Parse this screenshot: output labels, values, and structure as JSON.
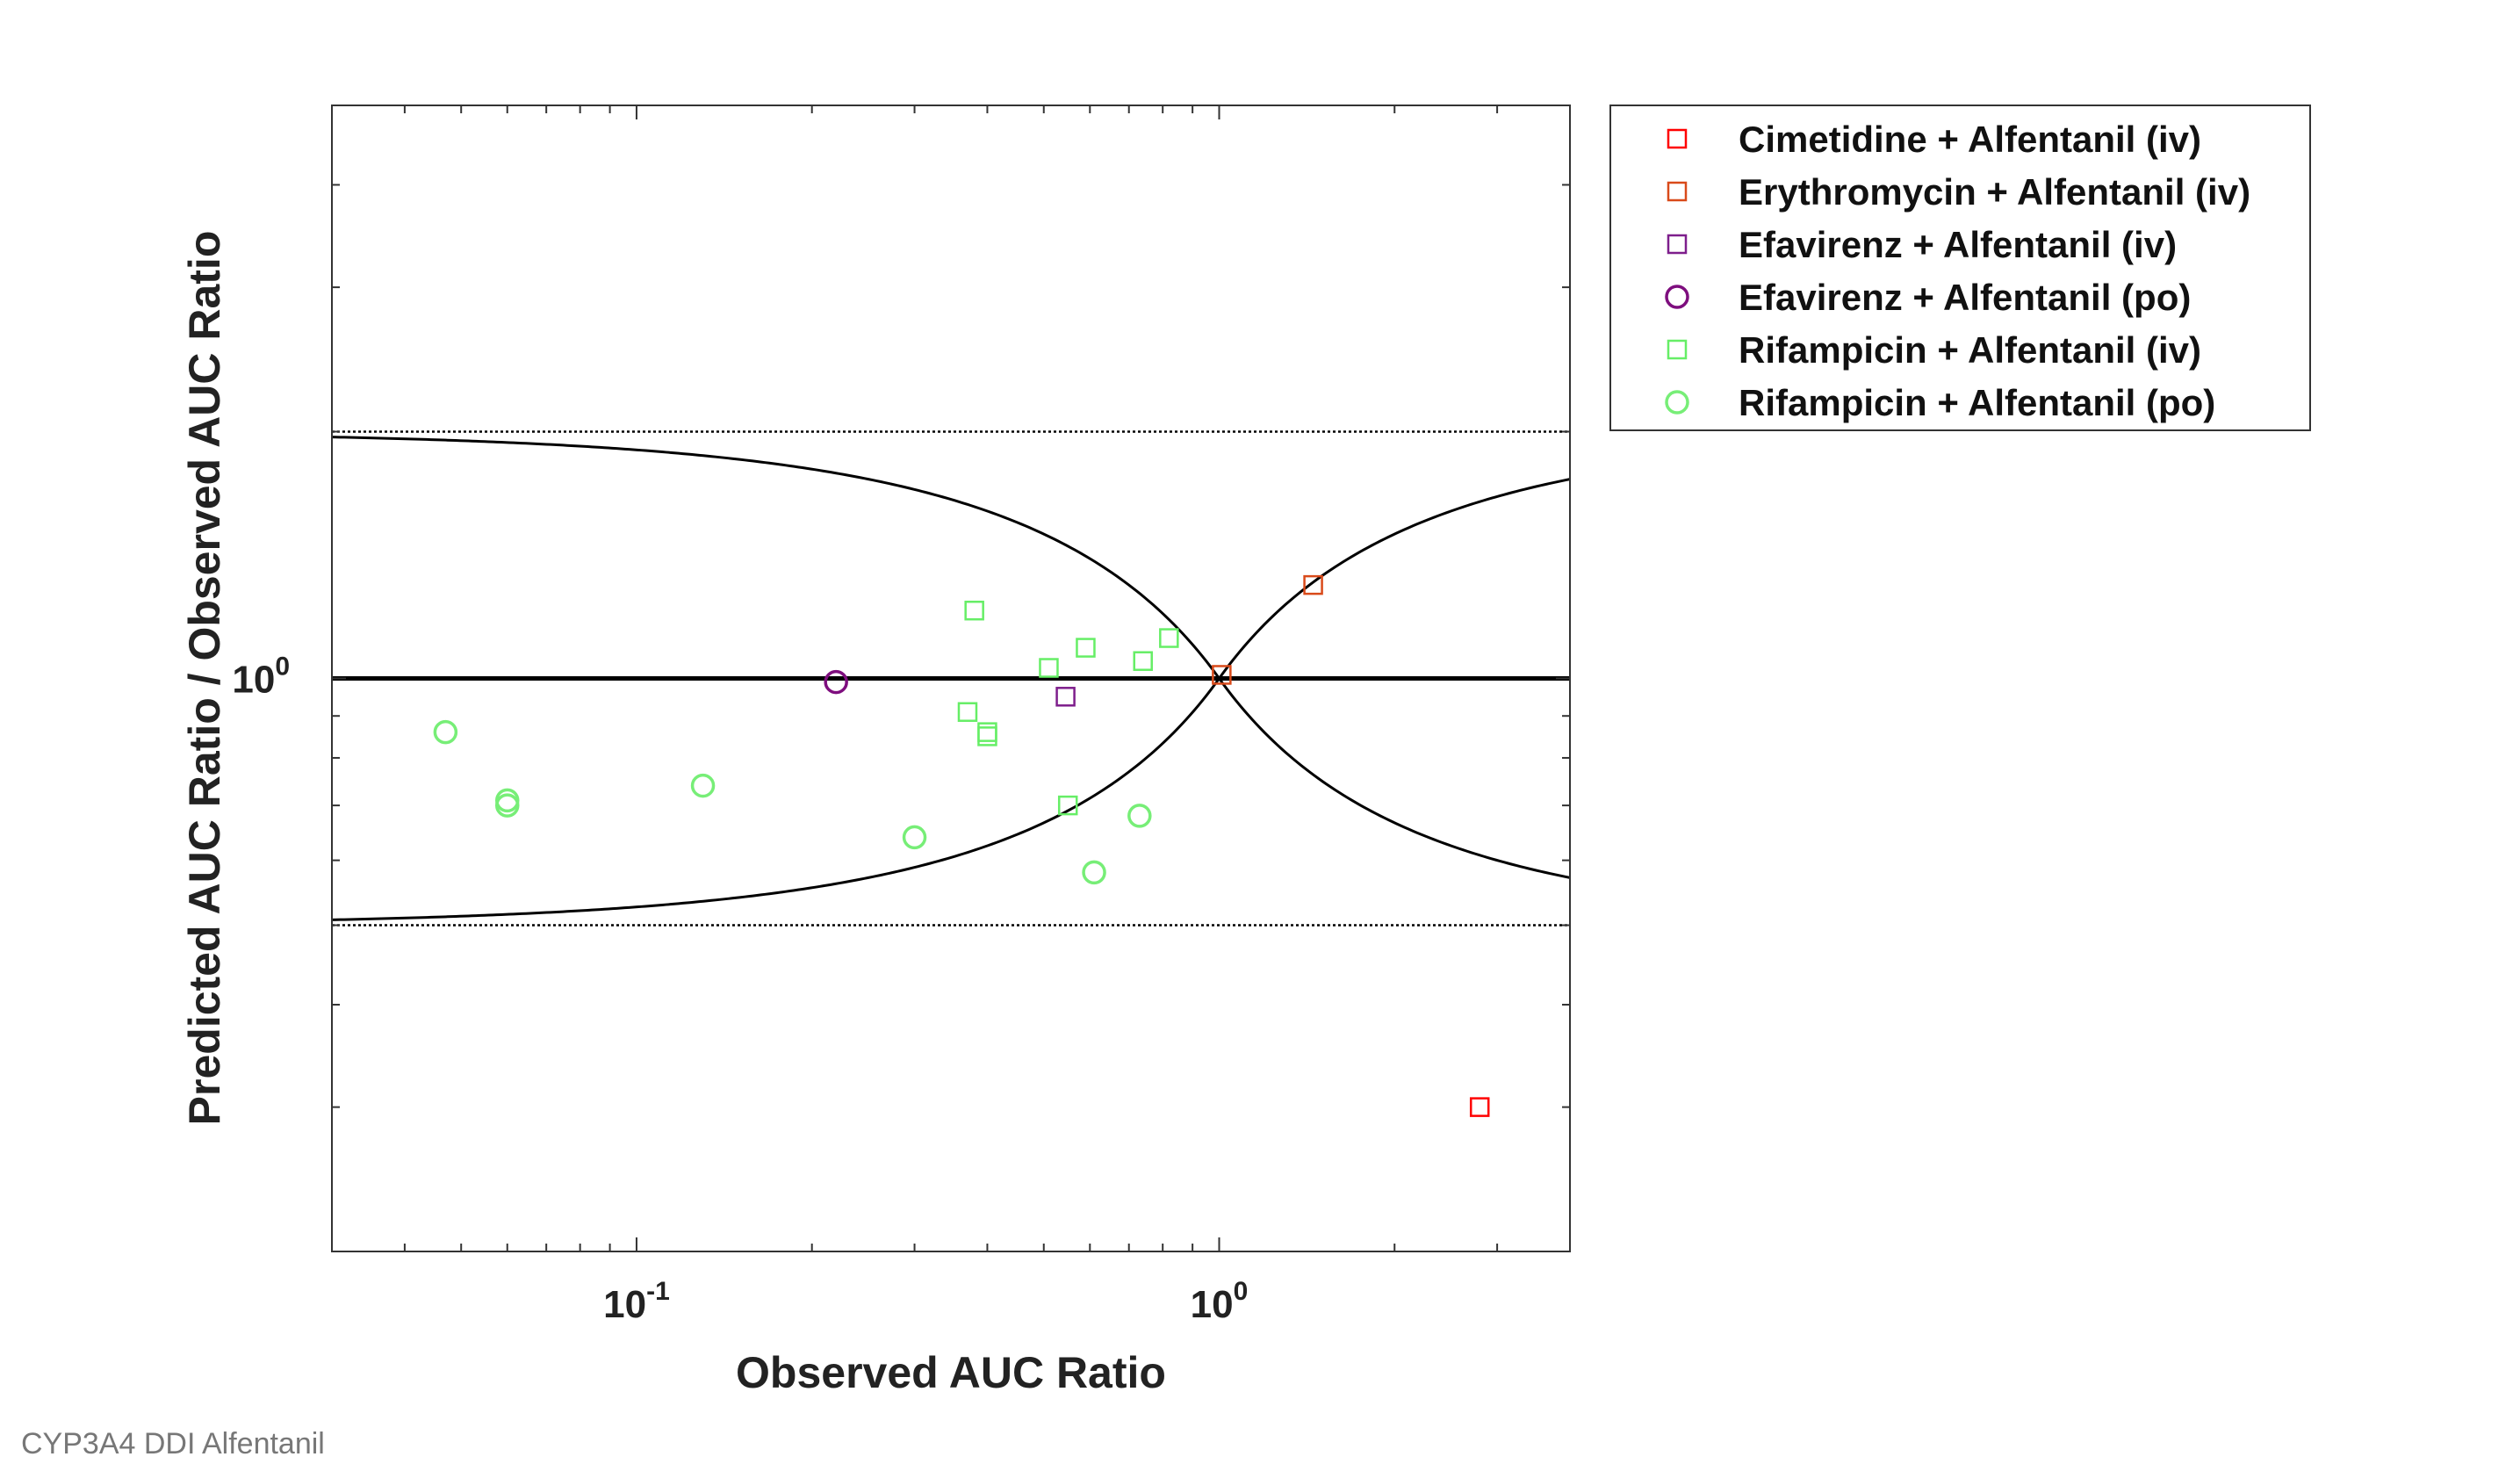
{
  "footer_caption": "CYP3A4 DDI Alfentanil",
  "chart_data": {
    "type": "scatter",
    "title": "",
    "xlabel": "Observed AUC Ratio",
    "ylabel": "Predicted AUC Ratio / Observed AUC Ratio",
    "x_scale": "log",
    "y_scale": "log",
    "xlim": [
      0.03,
      4.0
    ],
    "ylim": [
      0.2,
      5.0
    ],
    "grid": false,
    "legend_position": "outside-top-right",
    "x_ticks": [
      {
        "value": 0.1,
        "base": "10",
        "exp": "-1"
      },
      {
        "value": 1.0,
        "base": "10",
        "exp": "0"
      }
    ],
    "y_ticks": [
      {
        "value": 1.0,
        "base": "10",
        "exp": "0"
      }
    ],
    "reference_lines": {
      "unity": 1.0,
      "dotted_bounds": [
        0.5,
        2.0
      ],
      "guest_limit_delta": 1.0
    },
    "series": [
      {
        "name": "Cimetidine + Alfentanil (iv)",
        "marker": "square",
        "color": "#ff0000",
        "x": [
          2.8
        ],
        "y": [
          0.3
        ]
      },
      {
        "name": "Erythromycin + Alfentanil (iv)",
        "marker": "square",
        "color": "#d94a1a",
        "x": [
          1.45,
          1.01
        ],
        "y": [
          1.3,
          1.01
        ]
      },
      {
        "name": "Efavirenz + Alfentanil (iv)",
        "marker": "square",
        "color": "#7e1e8c",
        "x": [
          0.545
        ],
        "y": [
          0.95
        ]
      },
      {
        "name": "Efavirenz + Alfentanil (po)",
        "marker": "circle",
        "color": "#7e0e7e",
        "x": [
          0.22
        ],
        "y": [
          0.99
        ]
      },
      {
        "name": "Rifampicin + Alfentanil (iv)",
        "marker": "square",
        "color": "#66ee66",
        "x": [
          0.38,
          0.37,
          0.4,
          0.4,
          0.51,
          0.59,
          0.74,
          0.82,
          0.55
        ],
        "y": [
          1.21,
          0.91,
          0.86,
          0.85,
          1.03,
          1.09,
          1.05,
          1.12,
          0.7
        ]
      },
      {
        "name": "Rifampicin + Alfentanil (po)",
        "marker": "circle",
        "color": "#77ee77",
        "x": [
          0.047,
          0.06,
          0.06,
          0.13,
          0.3,
          0.61,
          0.73
        ],
        "y": [
          0.86,
          0.71,
          0.7,
          0.74,
          0.64,
          0.58,
          0.68
        ]
      }
    ]
  }
}
